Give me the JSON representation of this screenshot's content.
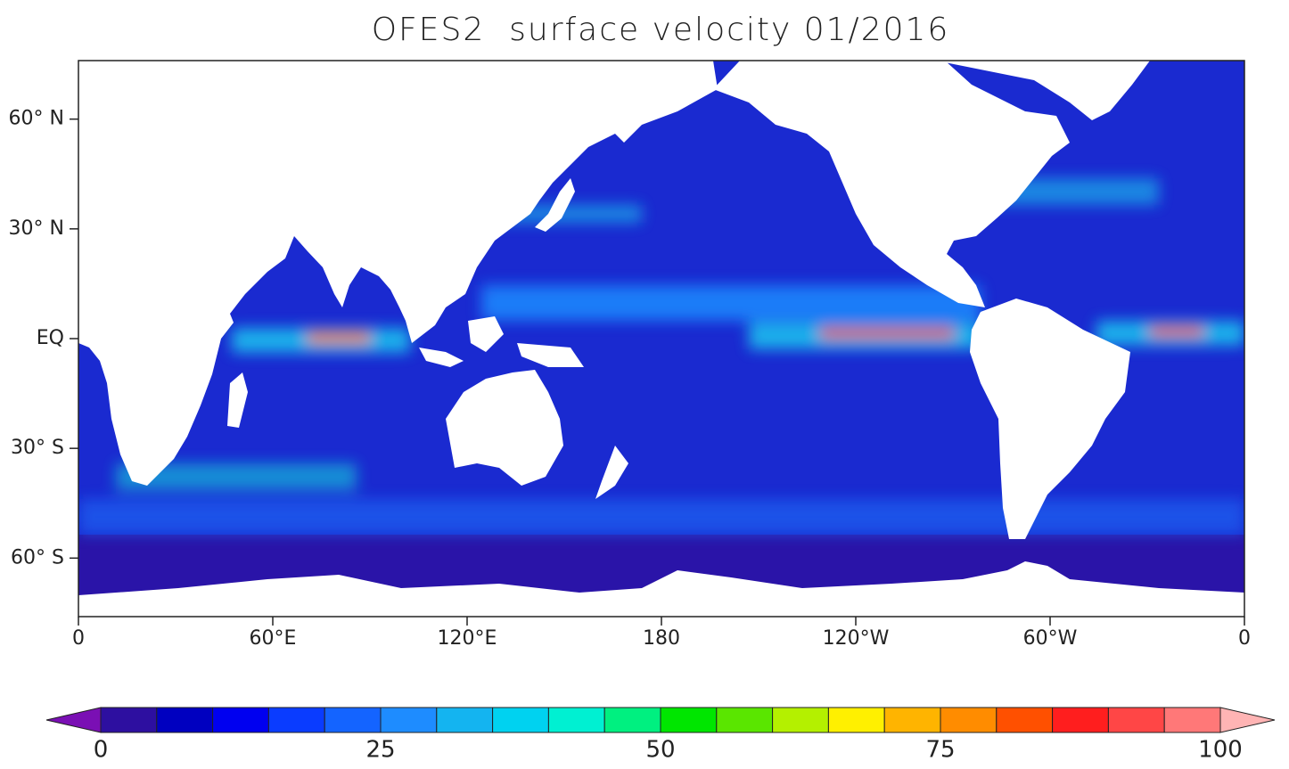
{
  "title": "OFES2  surface velocity 01/2016",
  "map": {
    "xlim": [
      0,
      360
    ],
    "ylim": [
      -76,
      76
    ],
    "xticks": [
      0,
      {
        "value": 60,
        "label": "60°E"
      },
      {
        "value": 120,
        "label": "120°E"
      },
      180,
      {
        "value": 240,
        "label": "120°W"
      },
      {
        "value": 300,
        "label": "60°W"
      },
      {
        "value": 360,
        "label": "0"
      }
    ],
    "yticks": [
      {
        "value": 60,
        "label": "60° N"
      },
      {
        "value": 30,
        "label": "30° N"
      },
      {
        "value": 0,
        "label": "EQ"
      },
      {
        "value": -30,
        "label": "30° S"
      },
      {
        "value": -60,
        "label": "60° S"
      }
    ]
  },
  "colorbar": {
    "lim": [
      0,
      100
    ],
    "ticks": [
      0,
      25,
      50,
      75,
      100
    ],
    "colors": [
      "#2d0fa0",
      "#0000c0",
      "#0000f0",
      "#0a3cff",
      "#1464ff",
      "#1e8cff",
      "#14b4f0",
      "#00d2f0",
      "#00f0d2",
      "#00f080",
      "#00e600",
      "#5ae600",
      "#b4f000",
      "#fff000",
      "#ffb400",
      "#ff8c00",
      "#ff5000",
      "#ff1e1e",
      "#ff4646",
      "#ff7878"
    ],
    "under_color": "#7a0fb4",
    "over_color": "#ffb4b4"
  }
}
